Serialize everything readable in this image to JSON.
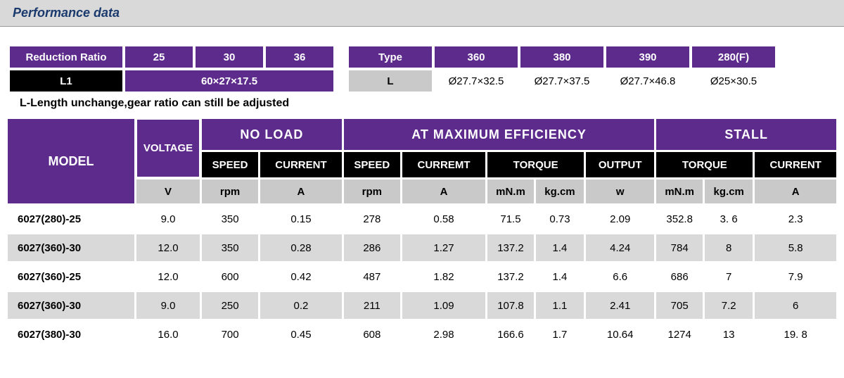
{
  "header": {
    "title": "Performance data"
  },
  "ratio": {
    "label": "Reduction Ratio",
    "values": [
      "25",
      "30",
      "36"
    ],
    "l1_label": "L1",
    "l1_value": "60×27×17.5"
  },
  "type": {
    "label": "Type",
    "values": [
      "360",
      "380",
      "390",
      "280(F)"
    ],
    "l_label": "L",
    "l_values": [
      "Ø27.7×32.5",
      "Ø27.7×37.5",
      "Ø27.7×46.8",
      "Ø25×30.5"
    ]
  },
  "note": "L-Length unchange,gear ratio can still be adjusted",
  "mainHeaders": {
    "model": "MODEL",
    "voltage": "VOLTAGE",
    "noload": "NO  LOAD",
    "maxeff": "AT  MAXIMUM  EFFICIENCY",
    "stall": "STALL",
    "speed": "SPEED",
    "current": "CURRENT",
    "curremt": "CURREMT",
    "torque": "TORQUE",
    "output": "OUTPUT",
    "units": {
      "v": "V",
      "rpm": "rpm",
      "a": "A",
      "mnm": "mN.m",
      "kgcm": "kg.cm",
      "w": "w"
    }
  },
  "rows": [
    {
      "model": "6027(280)-25",
      "v": "9.0",
      "nl_speed": "350",
      "nl_cur": "0.15",
      "me_speed": "278",
      "me_cur": "0.58",
      "me_t_mnm": "71.5",
      "me_t_kgcm": "0.73",
      "me_out": "2.09",
      "st_t_mnm": "352.8",
      "st_t_kgcm": "3. 6",
      "st_cur": "2.3"
    },
    {
      "model": "6027(360)-30",
      "v": "12.0",
      "nl_speed": "350",
      "nl_cur": "0.28",
      "me_speed": "286",
      "me_cur": "1.27",
      "me_t_mnm": "137.2",
      "me_t_kgcm": "1.4",
      "me_out": "4.24",
      "st_t_mnm": "784",
      "st_t_kgcm": "8",
      "st_cur": "5.8"
    },
    {
      "model": "6027(360)-25",
      "v": "12.0",
      "nl_speed": "600",
      "nl_cur": "0.42",
      "me_speed": "487",
      "me_cur": "1.82",
      "me_t_mnm": "137.2",
      "me_t_kgcm": "1.4",
      "me_out": "6.6",
      "st_t_mnm": "686",
      "st_t_kgcm": "7",
      "st_cur": "7.9"
    },
    {
      "model": "6027(360)-30",
      "v": "9.0",
      "nl_speed": "250",
      "nl_cur": "0.2",
      "me_speed": "211",
      "me_cur": "1.09",
      "me_t_mnm": "107.8",
      "me_t_kgcm": "1.1",
      "me_out": "2.41",
      "st_t_mnm": "705",
      "st_t_kgcm": "7.2",
      "st_cur": "6"
    },
    {
      "model": "6027(380)-30",
      "v": "16.0",
      "nl_speed": "700",
      "nl_cur": "0.45",
      "me_speed": "608",
      "me_cur": "2.98",
      "me_t_mnm": "166.6",
      "me_t_kgcm": "1.7",
      "me_out": "10.64",
      "st_t_mnm": "1274",
      "st_t_kgcm": "13",
      "st_cur": "19. 8"
    }
  ],
  "colors": {
    "purple": "#5d2b8c",
    "black": "#000000",
    "grey": "#c9c9c9",
    "lightgrey": "#d9d9d9",
    "headerBlue": "#1a3a6e"
  }
}
